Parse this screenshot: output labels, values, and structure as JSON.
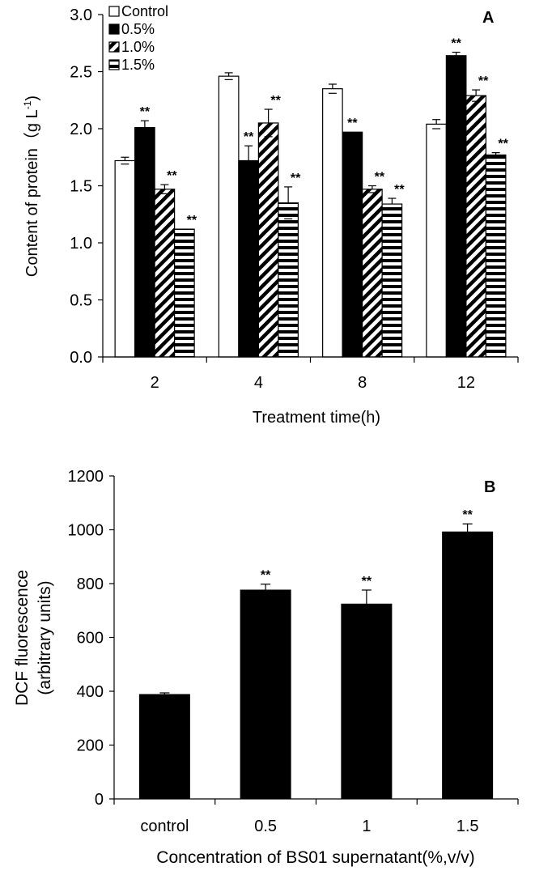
{
  "chart_data": [
    {
      "panel_label": "A",
      "type": "bar",
      "xlabel": "Treatment time(h)",
      "ylabel": "Content of protein（g L",
      "ylabel_sup": "-1",
      "ylabel_close": ")",
      "ylim": [
        0,
        3.0
      ],
      "yticks": [
        "0.0",
        "0.5",
        "1.0",
        "1.5",
        "2.0",
        "2.5",
        "3.0"
      ],
      "categories": [
        "2",
        "4",
        "8",
        "12"
      ],
      "series": [
        {
          "name": "Control",
          "pattern": "white",
          "values": [
            1.72,
            2.46,
            2.35,
            2.04
          ],
          "errors": [
            0.03,
            0.03,
            0.04,
            0.04
          ],
          "annotations": [
            "",
            "",
            "",
            ""
          ]
        },
        {
          "name": "0.5%",
          "pattern": "black",
          "values": [
            2.01,
            1.72,
            1.97,
            2.64
          ],
          "errors": [
            0.06,
            0.13,
            0.0,
            0.03
          ],
          "annotations": [
            "**",
            "**",
            "**",
            "**"
          ]
        },
        {
          "name": "1.0%",
          "pattern": "diagonal",
          "values": [
            1.47,
            2.05,
            1.47,
            2.29
          ],
          "errors": [
            0.04,
            0.12,
            0.03,
            0.05
          ],
          "annotations": [
            "**",
            "**",
            "**",
            "**"
          ]
        },
        {
          "name": "1.5%",
          "pattern": "horizontal",
          "values": [
            1.12,
            1.35,
            1.34,
            1.77
          ],
          "errors": [
            0.0,
            0.14,
            0.05,
            0.02
          ],
          "annotations": [
            "**",
            "**",
            "**",
            "**"
          ]
        }
      ]
    },
    {
      "panel_label": "B",
      "type": "bar",
      "xlabel": "Concentration of BS01 supernatant(%,v/v)",
      "ylabel": "DCF fluorescence",
      "ylabel2": "(arbitrary units)",
      "ylim": [
        0,
        1200
      ],
      "yticks": [
        "0",
        "200",
        "400",
        "600",
        "800",
        "1000",
        "1200"
      ],
      "categories": [
        "control",
        "0.5",
        "1",
        "1.5"
      ],
      "values": [
        388,
        776,
        724,
        992
      ],
      "errors": [
        6,
        22,
        52,
        30
      ],
      "annotations": [
        "",
        "**",
        "**",
        "**"
      ]
    }
  ]
}
